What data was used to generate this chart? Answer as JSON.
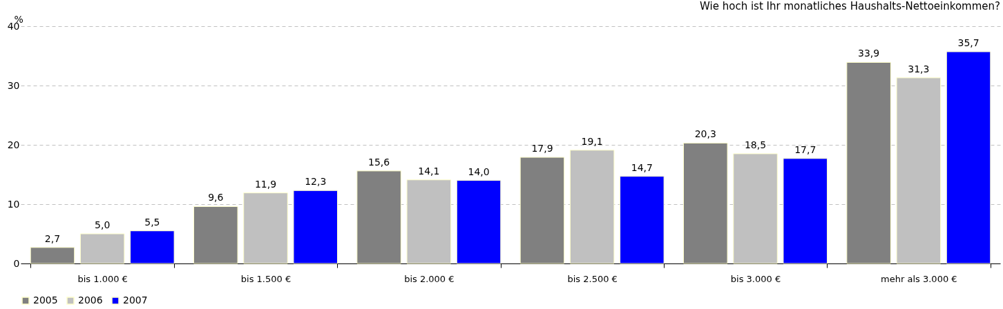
{
  "chart_data": {
    "type": "bar",
    "title": "Wie hoch ist Ihr monatliches Haushalts-Nettoeinkommen?",
    "ylabel": "%",
    "categories": [
      "bis 1.000 €",
      "bis 1.500 €",
      "bis 2.000 €",
      "bis 2.500 €",
      "bis 3.000 €",
      "mehr als 3.000 €"
    ],
    "series": [
      {
        "name": "2005",
        "color": "#808080",
        "values": [
          2.7,
          9.6,
          15.6,
          17.9,
          20.3,
          33.9
        ],
        "value_labels": [
          "2,7",
          "9,6",
          "15,6",
          "17,9",
          "20,3",
          "33,9"
        ]
      },
      {
        "name": "2006",
        "color": "#c0c0c0",
        "values": [
          5.0,
          11.9,
          14.1,
          19.1,
          18.5,
          31.3
        ],
        "value_labels": [
          "5,0",
          "11,9",
          "14,1",
          "19,1",
          "18,5",
          "31,3"
        ]
      },
      {
        "name": "2007",
        "color": "#0000ff",
        "values": [
          5.5,
          12.3,
          14.0,
          14.7,
          17.7,
          35.7
        ],
        "value_labels": [
          "5,5",
          "12,3",
          "14,0",
          "14,7",
          "17,7",
          "35,7"
        ]
      }
    ],
    "ylim": [
      0,
      40
    ],
    "yticks": [
      0,
      10,
      20,
      30,
      40
    ],
    "grid": "y",
    "legend": "bottom"
  }
}
